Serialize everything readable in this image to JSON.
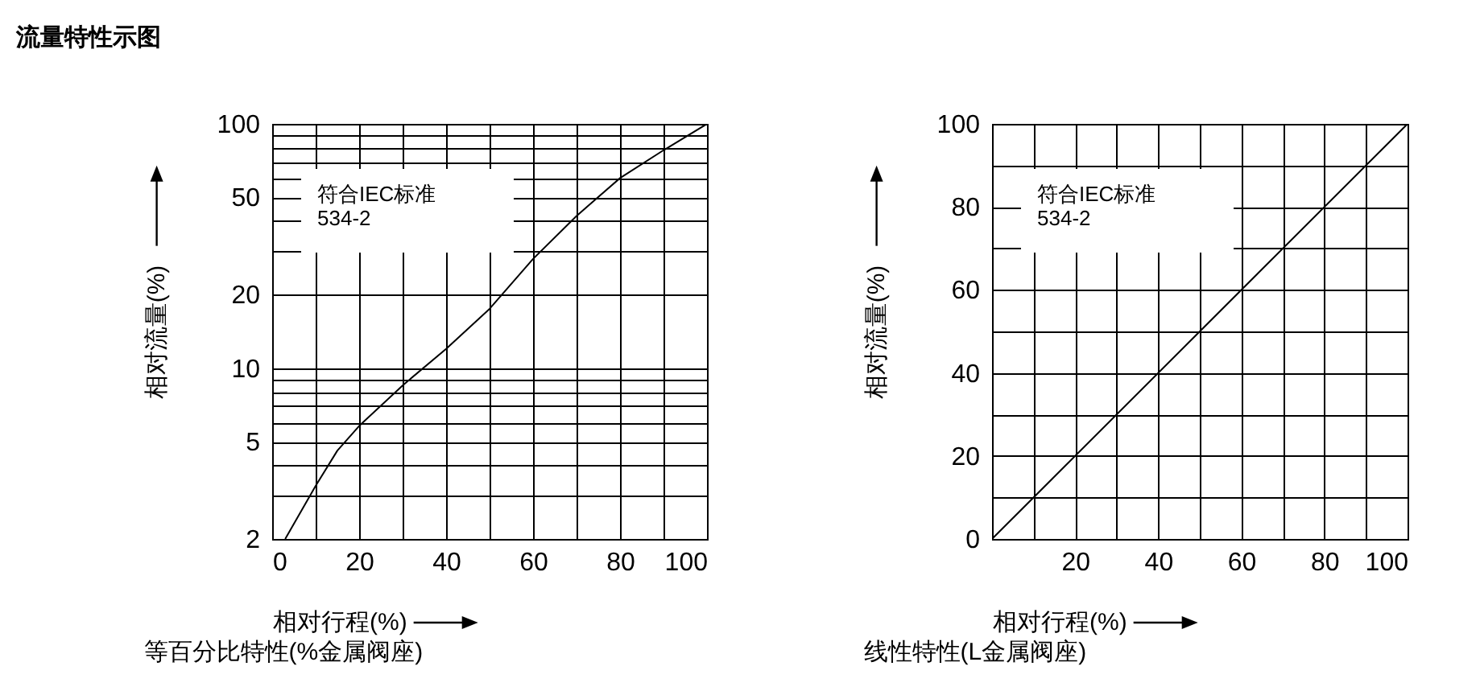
{
  "chart_data": [
    {
      "type": "line",
      "title": "流量特性示图",
      "subtitle": "等百分比特性(%金属阀座)",
      "xlabel": "相对行程(%)",
      "ylabel": "相对流量(%)",
      "annotations": [
        "符合IEC标准\n534-2"
      ],
      "x": [
        3,
        10,
        15,
        20,
        30,
        40,
        50,
        60,
        70,
        80,
        90,
        100
      ],
      "series": [
        {
          "color": "#000000",
          "values": [
            2,
            3.3,
            4.6,
            5.8,
            8.5,
            12,
            17.5,
            28,
            42,
            60,
            78,
            100
          ]
        }
      ],
      "log": "y",
      "xlim": [
        0,
        100
      ],
      "ylim": [
        2,
        100
      ],
      "xticks": [
        0,
        {
          "value": 10,
          "label": null
        },
        20,
        {
          "value": 30,
          "label": null
        },
        40,
        {
          "value": 50,
          "label": null
        },
        60,
        {
          "value": 70,
          "label": null
        },
        80,
        {
          "value": 90,
          "label": null
        },
        100
      ],
      "yticks": [
        2,
        {
          "value": 3,
          "label": null
        },
        {
          "value": 4,
          "label": null
        },
        5,
        {
          "value": 6,
          "label": null
        },
        {
          "value": 7,
          "label": null
        },
        {
          "value": 8,
          "label": null
        },
        {
          "value": 9,
          "label": null
        },
        10,
        20,
        {
          "value": 30,
          "label": null
        },
        {
          "value": 40,
          "label": null
        },
        50,
        {
          "value": 60,
          "label": null
        },
        {
          "value": 70,
          "label": null
        },
        {
          "value": 80,
          "label": null
        },
        {
          "value": 90,
          "label": null
        },
        100
      ],
      "grid": true,
      "marker": "none",
      "line_style": "solid"
    },
    {
      "type": "line",
      "subtitle": "线性特性(L金属阀座)",
      "xlabel": "相对行程(%)",
      "ylabel": "相对流量(%)",
      "annotations": [
        "符合IEC标准\n534-2"
      ],
      "x": [
        0,
        100
      ],
      "series": [
        {
          "color": "#000000",
          "values": [
            0,
            100
          ]
        }
      ],
      "xlim": [
        0,
        100
      ],
      "ylim": [
        0,
        100
      ],
      "xticks": [
        {
          "value": 0,
          "label": null
        },
        {
          "value": 10,
          "label": null
        },
        20,
        {
          "value": 30,
          "label": null
        },
        40,
        {
          "value": 50,
          "label": null
        },
        60,
        {
          "value": 70,
          "label": null
        },
        80,
        {
          "value": 90,
          "label": null
        },
        100
      ],
      "yticks": [
        0,
        {
          "value": 10,
          "label": null
        },
        20,
        {
          "value": 30,
          "label": null
        },
        40,
        {
          "value": 50,
          "label": null
        },
        60,
        {
          "value": 70,
          "label": null
        },
        80,
        {
          "value": 90,
          "label": null
        },
        100
      ],
      "grid": true,
      "marker": "none",
      "line_style": "solid"
    }
  ]
}
